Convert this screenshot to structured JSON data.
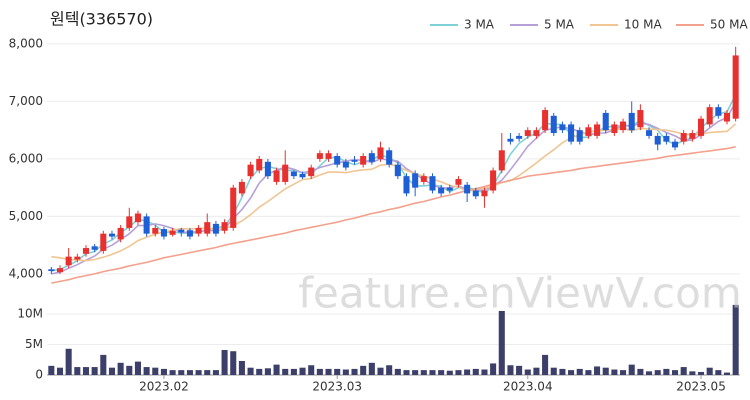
{
  "chart_data": {
    "type": "candlestick",
    "title": "원텍(336570)",
    "watermark": "feature.enViewV.com",
    "categories": [
      null,
      null,
      null,
      null,
      null,
      null,
      null,
      null,
      null,
      null,
      null,
      null,
      null,
      "2023.02",
      null,
      null,
      null,
      null,
      null,
      null,
      null,
      null,
      null,
      null,
      null,
      null,
      null,
      null,
      null,
      null,
      null,
      null,
      null,
      "2023.03",
      null,
      null,
      null,
      null,
      null,
      null,
      null,
      null,
      null,
      null,
      null,
      null,
      null,
      null,
      null,
      null,
      null,
      null,
      null,
      null,
      null,
      "2023.04",
      null,
      null,
      null,
      null,
      null,
      null,
      null,
      null,
      null,
      null,
      null,
      null,
      null,
      null,
      null,
      null,
      null,
      null,
      null,
      "2023.05",
      null,
      null,
      null,
      null
    ],
    "open": [
      4080,
      4030,
      4150,
      4250,
      4350,
      4480,
      4400,
      4700,
      4600,
      4800,
      4900,
      5000,
      4700,
      4780,
      4680,
      4770,
      4760,
      4700,
      4700,
      4870,
      4750,
      4800,
      5400,
      5700,
      5800,
      5950,
      5600,
      5600,
      5780,
      5740,
      5700,
      6000,
      6000,
      6050,
      5950,
      5980,
      5900,
      6100,
      6000,
      6150,
      5900,
      5700,
      5750,
      5600,
      5700,
      5500,
      5500,
      5550,
      5550,
      5450,
      5350,
      5450,
      5800,
      6350,
      6400,
      6400,
      6400,
      6500,
      6750,
      6600,
      6600,
      6500,
      6400,
      6400,
      6800,
      6450,
      6500,
      6800,
      6550,
      6500,
      6400,
      6400,
      6300,
      6300,
      6350,
      6400,
      6600,
      6900,
      6650,
      6700
    ],
    "high": [
      4120,
      4150,
      4450,
      4350,
      4500,
      4520,
      4750,
      4750,
      4850,
      5150,
      5100,
      5050,
      4850,
      4820,
      4800,
      4800,
      4800,
      4850,
      5050,
      4920,
      4950,
      5550,
      5650,
      5950,
      6050,
      6000,
      5850,
      6150,
      5800,
      5780,
      5900,
      6150,
      6150,
      6100,
      6000,
      6050,
      6100,
      6150,
      6300,
      6200,
      5950,
      5750,
      5800,
      5750,
      5750,
      5550,
      5550,
      5700,
      5600,
      5500,
      5500,
      5850,
      6450,
      6450,
      6450,
      6550,
      6550,
      6900,
      6800,
      6650,
      6650,
      6550,
      6600,
      6650,
      6850,
      6650,
      6700,
      7000,
      6950,
      6550,
      6450,
      6450,
      6350,
      6500,
      6500,
      6750,
      6950,
      6950,
      6850,
      7950
    ],
    "low": [
      4000,
      4000,
      4100,
      4200,
      4300,
      4380,
      4350,
      4600,
      4550,
      4750,
      4850,
      4650,
      4650,
      4600,
      4650,
      4650,
      4600,
      4650,
      4650,
      4650,
      4700,
      4750,
      5350,
      5650,
      5750,
      5650,
      5550,
      5550,
      5650,
      5650,
      5650,
      5950,
      5950,
      5850,
      5800,
      5900,
      5850,
      5900,
      5950,
      5850,
      5650,
      5350,
      5350,
      5550,
      5400,
      5350,
      5400,
      5500,
      5250,
      5300,
      5150,
      5400,
      5750,
      6250,
      6300,
      6350,
      6350,
      6450,
      6400,
      6450,
      6250,
      6250,
      6350,
      6350,
      6450,
      6400,
      6450,
      6450,
      6500,
      6350,
      6150,
      6250,
      6150,
      6250,
      6300,
      6350,
      6550,
      6700,
      6600,
      6650
    ],
    "close": [
      4050,
      4100,
      4300,
      4300,
      4450,
      4420,
      4700,
      4650,
      4800,
      5000,
      5050,
      4700,
      4800,
      4650,
      4750,
      4720,
      4650,
      4800,
      4900,
      4700,
      4900,
      5500,
      5600,
      5900,
      6000,
      5700,
      5800,
      5900,
      5700,
      5680,
      5850,
      6100,
      6100,
      5900,
      5850,
      5950,
      6050,
      5950,
      6200,
      5900,
      5700,
      5400,
      5500,
      5700,
      5450,
      5400,
      5450,
      5650,
      5400,
      5350,
      5450,
      5800,
      6150,
      6300,
      6350,
      6500,
      6500,
      6850,
      6450,
      6500,
      6300,
      6300,
      6550,
      6600,
      6500,
      6600,
      6650,
      6500,
      6850,
      6400,
      6250,
      6300,
      6200,
      6450,
      6450,
      6700,
      6900,
      6750,
      6800,
      7800
    ],
    "up_color": "#e8312f",
    "down_color": "#1f5fd6",
    "ylim": [
      3720,
      8190
    ],
    "yticks": [
      {
        "value": 4000,
        "label": "4,000"
      },
      {
        "value": 5000,
        "label": "5,000"
      },
      {
        "value": 6000,
        "label": "6,000"
      },
      {
        "value": 7000,
        "label": "7,000"
      },
      {
        "value": 8000,
        "label": "8,000"
      }
    ],
    "grid": true,
    "series": [
      {
        "name": "3 MA",
        "color": "#7fd1d8",
        "values": [
          4050,
          4080,
          4150,
          4230,
          4350,
          4390,
          4520,
          4590,
          4720,
          4820,
          4950,
          4920,
          4850,
          4720,
          4730,
          4710,
          4710,
          4720,
          4780,
          4800,
          4830,
          5030,
          5330,
          5670,
          5830,
          5870,
          5830,
          5800,
          5800,
          5760,
          5740,
          5880,
          6020,
          6030,
          5950,
          5900,
          5950,
          5980,
          6070,
          6020,
          5930,
          5670,
          5530,
          5530,
          5550,
          5520,
          5430,
          5500,
          5500,
          5470,
          5400,
          5530,
          5800,
          6080,
          6270,
          6380,
          6450,
          6620,
          6600,
          6600,
          6420,
          6370,
          6380,
          6480,
          6550,
          6570,
          6580,
          6580,
          6670,
          6580,
          6500,
          6320,
          6250,
          6320,
          6370,
          6530,
          6680,
          6780,
          6820,
          7120
        ]
      },
      {
        "name": "5 MA",
        "color": "#b7a0d8",
        "values": [
          4000,
          4030,
          4100,
          4160,
          4240,
          4310,
          4430,
          4500,
          4600,
          4700,
          4840,
          4840,
          4870,
          4840,
          4790,
          4720,
          4730,
          4730,
          4760,
          4750,
          4790,
          4960,
          5120,
          5320,
          5580,
          5740,
          5800,
          5860,
          5820,
          5760,
          5790,
          5850,
          5890,
          5930,
          5960,
          5990,
          5970,
          5940,
          6000,
          5980,
          5960,
          5830,
          5740,
          5640,
          5550,
          5490,
          5500,
          5530,
          5470,
          5450,
          5460,
          5530,
          5630,
          5810,
          6010,
          6220,
          6360,
          6500,
          6530,
          6560,
          6520,
          6480,
          6420,
          6450,
          6450,
          6510,
          6580,
          6570,
          6620,
          6600,
          6530,
          6460,
          6400,
          6320,
          6330,
          6420,
          6540,
          6650,
          6720,
          6990
        ]
      },
      {
        "name": "10 MA",
        "color": "#f0c592",
        "values": [
          4300,
          4280,
          4250,
          4240,
          4230,
          4250,
          4290,
          4340,
          4400,
          4480,
          4580,
          4640,
          4690,
          4730,
          4760,
          4790,
          4780,
          4790,
          4800,
          4770,
          4790,
          4840,
          4920,
          5030,
          5160,
          5260,
          5370,
          5480,
          5560,
          5640,
          5660,
          5720,
          5770,
          5770,
          5760,
          5790,
          5810,
          5820,
          5890,
          5910,
          5870,
          5800,
          5740,
          5700,
          5650,
          5600,
          5540,
          5510,
          5430,
          5470,
          5490,
          5530,
          5590,
          5620,
          5710,
          5820,
          5930,
          6050,
          6160,
          6280,
          6370,
          6420,
          6470,
          6490,
          6500,
          6510,
          6530,
          6490,
          6530,
          6520,
          6510,
          6500,
          6470,
          6430,
          6420,
          6430,
          6460,
          6470,
          6480,
          6610
        ]
      },
      {
        "name": "50 MA",
        "color": "#f3a08c",
        "values": [
          3840,
          3870,
          3900,
          3940,
          3970,
          4000,
          4040,
          4070,
          4100,
          4140,
          4170,
          4200,
          4240,
          4280,
          4310,
          4340,
          4370,
          4400,
          4430,
          4460,
          4500,
          4530,
          4560,
          4590,
          4620,
          4650,
          4680,
          4710,
          4750,
          4780,
          4810,
          4840,
          4870,
          4900,
          4940,
          4970,
          5010,
          5050,
          5080,
          5120,
          5150,
          5190,
          5230,
          5260,
          5300,
          5340,
          5370,
          5410,
          5450,
          5480,
          5520,
          5560,
          5590,
          5630,
          5660,
          5700,
          5720,
          5740,
          5760,
          5780,
          5800,
          5830,
          5850,
          5870,
          5890,
          5910,
          5930,
          5950,
          5970,
          5990,
          6010,
          6040,
          6060,
          6080,
          6100,
          6120,
          6140,
          6160,
          6180,
          6210
        ]
      }
    ],
    "volume": {
      "color": "#3d3f6b",
      "values": [
        1.5,
        1.2,
        4.3,
        1.3,
        1.3,
        1.3,
        3.3,
        1.2,
        2.0,
        1.5,
        2.2,
        1.3,
        1.2,
        1.0,
        0.8,
        0.8,
        0.8,
        0.8,
        0.8,
        0.8,
        4.1,
        3.9,
        2.3,
        1.2,
        1.0,
        1.1,
        1.7,
        1.0,
        1.0,
        1.2,
        1.6,
        1.0,
        1.0,
        1.0,
        0.9,
        1.0,
        1.5,
        2.0,
        1.2,
        1.6,
        1.0,
        0.8,
        0.8,
        0.8,
        0.8,
        0.8,
        0.7,
        0.8,
        0.9,
        1.0,
        0.9,
        1.9,
        10.5,
        1.6,
        1.5,
        0.9,
        1.2,
        3.3,
        1.2,
        1.0,
        0.8,
        1.0,
        0.8,
        1.4,
        1.2,
        0.9,
        0.8,
        1.7,
        1.0,
        0.6,
        0.8,
        1.0,
        0.8,
        1.3,
        0.6,
        0.5,
        1.2,
        0.8,
        0.4,
        11.5
      ],
      "ylim": [
        0,
        12.3
      ],
      "yticks": [
        0,
        {
          "value": 5,
          "label": "5M"
        },
        {
          "value": 10,
          "label": "10M"
        }
      ]
    }
  }
}
